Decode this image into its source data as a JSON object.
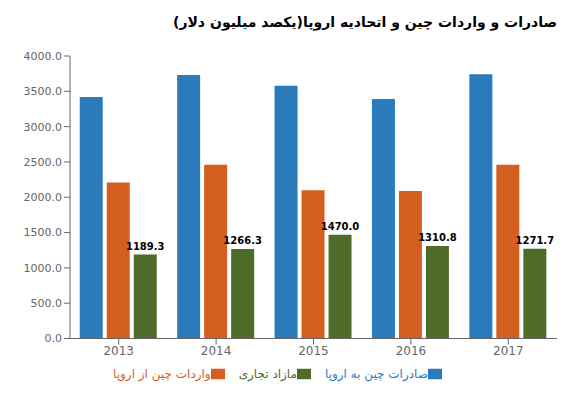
{
  "chart_data": {
    "type": "bar",
    "title": "صادرات و واردات چین و اتحادیه اروپا(یکصد میلیون دلار)",
    "categories": [
      "2013",
      "2014",
      "2015",
      "2016",
      "2017"
    ],
    "series": [
      {
        "name": "صادرات چین به اروپا",
        "color": "#2b7bba",
        "values": [
          3420,
          3730,
          3580,
          3390,
          3740
        ]
      },
      {
        "name": "واردات چین از اروپا",
        "color": "#d45f1e",
        "values": [
          2210,
          2460,
          2100,
          2090,
          2460
        ]
      },
      {
        "name": "مازاد تجاری",
        "color": "#4e6b2a",
        "values": [
          1189.3,
          1266.3,
          1470.0,
          1310.8,
          1271.7
        ],
        "data_labels": true,
        "value_labels": [
          "1189.3",
          "1266.3",
          "1470.0",
          "1310.8",
          "1271.7"
        ]
      }
    ],
    "ylim": [
      0,
      4000
    ],
    "yticks": [
      {
        "value": 0,
        "label": "0.0"
      },
      {
        "value": 500,
        "label": "500.0"
      },
      {
        "value": 1000,
        "label": "1000.0"
      },
      {
        "value": 1500,
        "label": "1500.0"
      },
      {
        "value": 2000,
        "label": "2000.0"
      },
      {
        "value": 2500,
        "label": "2500.0"
      },
      {
        "value": 3000,
        "label": "3000.0"
      },
      {
        "value": 3500,
        "label": "3500.0"
      },
      {
        "value": 4000,
        "label": "4000.0"
      }
    ],
    "grid": false,
    "legend": "bottom"
  }
}
